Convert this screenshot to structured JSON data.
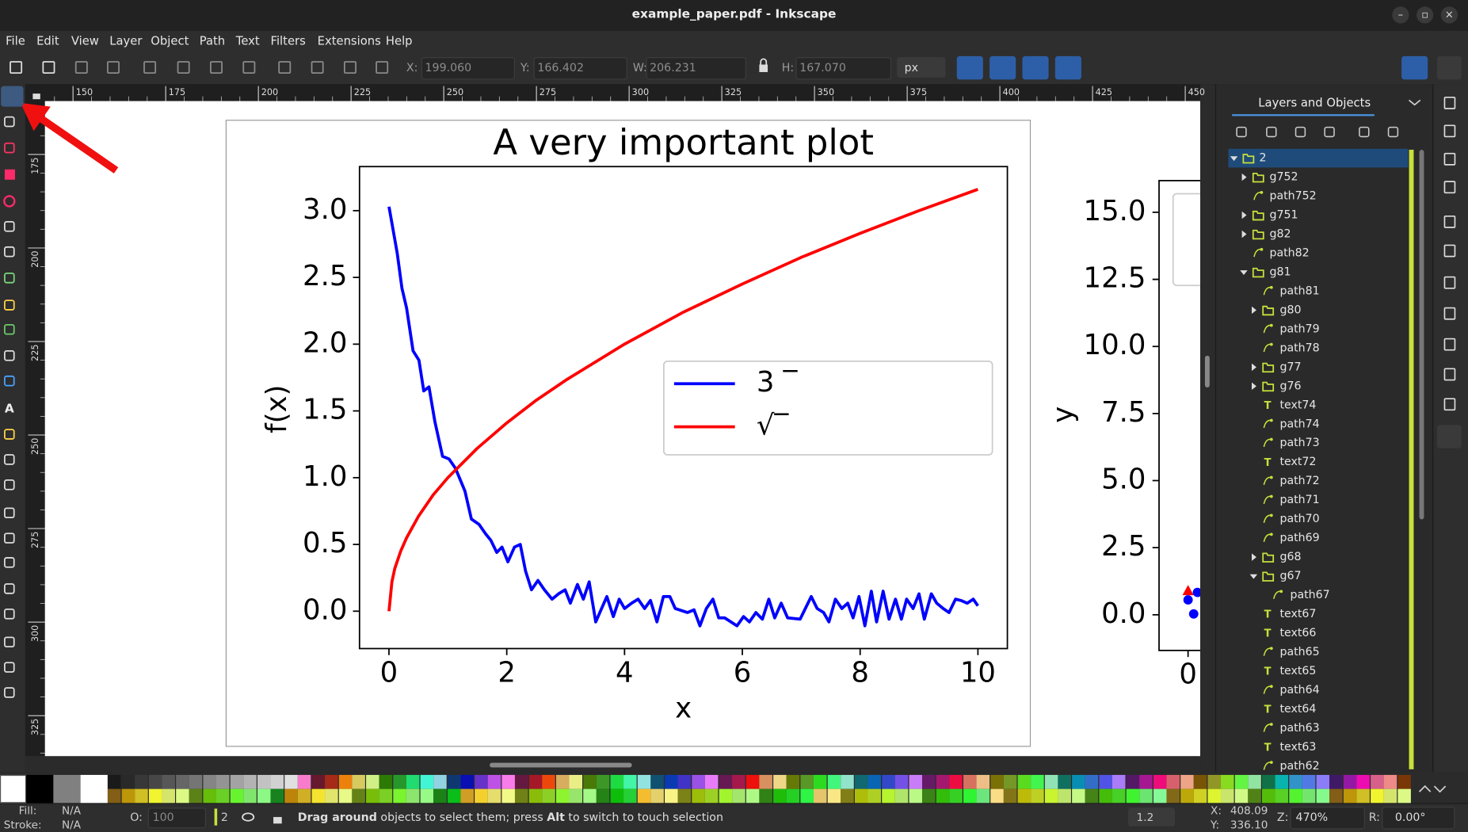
{
  "window": {
    "title": "example_paper.pdf - Inkscape"
  },
  "menu": [
    "File",
    "Edit",
    "View",
    "Layer",
    "Object",
    "Path",
    "Text",
    "Filters",
    "Extensions",
    "Help"
  ],
  "toolbar": {
    "x_label": "X:",
    "x": "199.060",
    "y_label": "Y:",
    "y": "166.402",
    "w_label": "W:",
    "w": "206.231",
    "h_label": "H:",
    "h": "167.070",
    "unit": "px"
  },
  "rulers": {
    "top": [
      150,
      175,
      200,
      225,
      250,
      275,
      300,
      325,
      350,
      375,
      400,
      425,
      450
    ],
    "left": [
      175,
      200,
      225,
      250,
      275,
      300,
      325
    ]
  },
  "canvas": {
    "plot": {
      "type": "line",
      "title": "A very important plot",
      "x_label": "x",
      "y_label": "f(x)",
      "xlim": [
        -0.5,
        10.5
      ],
      "ylim": [
        -0.28,
        3.33
      ],
      "xticks": [
        0,
        2,
        4,
        6,
        8,
        10
      ],
      "yticks": [
        {
          "value": 0,
          "label": "0.0"
        },
        {
          "value": 0.5,
          "label": "0.5"
        },
        {
          "value": 1,
          "label": "1.0"
        },
        {
          "value": 1.5,
          "label": "1.5"
        },
        {
          "value": 2,
          "label": "2.0"
        },
        {
          "value": 2.5,
          "label": "2.5"
        },
        {
          "value": 3,
          "label": "3.0"
        }
      ],
      "legend": "right",
      "series": [
        {
          "name": "3 ‾",
          "color": "#0000ff",
          "x": [
            0,
            0.14,
            0.22,
            0.3,
            0.41,
            0.51,
            0.59,
            0.68,
            0.78,
            0.91,
            1.02,
            1.13,
            1.29,
            1.4,
            1.53,
            1.64,
            1.73,
            1.83,
            1.92,
            2.02,
            2.13,
            2.23,
            2.32,
            2.42,
            2.53,
            2.64,
            2.77,
            2.88,
            2.99,
            3.08,
            3.2,
            3.3,
            3.4,
            3.51,
            3.7,
            3.81,
            3.91,
            4.0,
            4.12,
            4.23,
            4.34,
            4.44,
            4.55,
            4.66,
            4.77,
            4.86,
            5.07,
            5.18,
            5.28,
            5.39,
            5.5,
            5.6,
            5.7,
            5.91,
            6.02,
            6.12,
            6.23,
            6.34,
            6.45,
            6.55,
            6.66,
            6.77,
            6.98,
            7.17,
            7.27,
            7.38,
            7.47,
            7.58,
            7.69,
            7.79,
            7.88,
            7.98,
            8.08,
            8.19,
            8.28,
            8.39,
            8.49,
            8.6,
            8.7,
            8.79,
            8.9,
            9.0,
            9.09,
            9.21,
            9.3,
            9.41,
            9.51,
            9.62,
            9.71,
            9.82,
            9.92,
            10
          ],
          "values": [
            3.03,
            2.68,
            2.42,
            2.27,
            1.95,
            1.88,
            1.65,
            1.68,
            1.42,
            1.16,
            1.14,
            1.07,
            0.9,
            0.69,
            0.65,
            0.58,
            0.53,
            0.44,
            0.48,
            0.37,
            0.48,
            0.5,
            0.3,
            0.16,
            0.23,
            0.16,
            0.09,
            0.13,
            0.16,
            0.06,
            0.2,
            0.09,
            0.22,
            -0.08,
            0.11,
            -0.04,
            0.09,
            0.02,
            0.06,
            0.09,
            0.02,
            0.08,
            -0.08,
            0.11,
            0.11,
            0.02,
            -0.01,
            0.01,
            -0.11,
            0.02,
            0.09,
            -0.05,
            -0.05,
            -0.11,
            -0.04,
            -0.08,
            -0.01,
            -0.06,
            0.09,
            -0.05,
            0.06,
            -0.05,
            -0.06,
            0.11,
            0.02,
            -0.01,
            -0.08,
            0.09,
            0.02,
            0.06,
            -0.05,
            0.11,
            -0.11,
            0.15,
            -0.08,
            0.15,
            -0.06,
            0.09,
            -0.06,
            0.09,
            0.02,
            0.13,
            -0.06,
            0.13,
            0.06,
            0.02,
            -0.01,
            0.09,
            0.08,
            0.06,
            0.09,
            0.04
          ]
        },
        {
          "name": "√‾",
          "color": "#ff0000",
          "x": [
            0,
            0.05,
            0.1,
            0.2,
            0.3,
            0.5,
            0.75,
            1,
            1.5,
            2,
            2.5,
            3,
            4,
            5,
            6,
            7,
            8,
            9,
            10
          ],
          "values": [
            0,
            0.22,
            0.32,
            0.45,
            0.55,
            0.71,
            0.87,
            1,
            1.22,
            1.41,
            1.58,
            1.73,
            2,
            2.24,
            2.45,
            2.65,
            2.83,
            3,
            3.16
          ]
        }
      ]
    },
    "side_plot": {
      "type": "scatter",
      "y_label": "y",
      "ylim": [
        -1.33,
        16.18
      ],
      "xticks": [
        0
      ],
      "yticks": [
        {
          "value": 0,
          "label": "0.0"
        },
        {
          "value": 2.5,
          "label": "2.5"
        },
        {
          "value": 5,
          "label": "5.0"
        },
        {
          "value": 7.5,
          "label": "7.5"
        },
        {
          "value": 10,
          "label": "10.0"
        },
        {
          "value": 12.5,
          "label": "12.5"
        },
        {
          "value": 15,
          "label": "15.0"
        }
      ]
    }
  },
  "layers_panel": {
    "tab": "Layers and Objects",
    "items": [
      {
        "label": "2",
        "kind": "layer",
        "depth": 0,
        "expanded": true,
        "selected": true
      },
      {
        "label": "g752",
        "kind": "group",
        "depth": 1,
        "expanded": false
      },
      {
        "label": "path752",
        "kind": "path",
        "depth": 1
      },
      {
        "label": "g751",
        "kind": "group",
        "depth": 1,
        "expanded": false
      },
      {
        "label": "g82",
        "kind": "group",
        "depth": 1,
        "expanded": false
      },
      {
        "label": "path82",
        "kind": "path",
        "depth": 1
      },
      {
        "label": "g81",
        "kind": "group",
        "depth": 1,
        "expanded": true
      },
      {
        "label": "path81",
        "kind": "path",
        "depth": 2
      },
      {
        "label": "g80",
        "kind": "group",
        "depth": 2,
        "expanded": false
      },
      {
        "label": "path79",
        "kind": "path",
        "depth": 2
      },
      {
        "label": "path78",
        "kind": "path",
        "depth": 2
      },
      {
        "label": "g77",
        "kind": "group",
        "depth": 2,
        "expanded": false
      },
      {
        "label": "g76",
        "kind": "group",
        "depth": 2,
        "expanded": false
      },
      {
        "label": "text74",
        "kind": "text",
        "depth": 2
      },
      {
        "label": "path74",
        "kind": "path",
        "depth": 2
      },
      {
        "label": "path73",
        "kind": "path",
        "depth": 2
      },
      {
        "label": "text72",
        "kind": "text",
        "depth": 2
      },
      {
        "label": "path72",
        "kind": "path",
        "depth": 2
      },
      {
        "label": "path71",
        "kind": "path",
        "depth": 2
      },
      {
        "label": "path70",
        "kind": "path",
        "depth": 2
      },
      {
        "label": "path69",
        "kind": "path",
        "depth": 2
      },
      {
        "label": "g68",
        "kind": "group",
        "depth": 2,
        "expanded": false
      },
      {
        "label": "g67",
        "kind": "group",
        "depth": 2,
        "expanded": true
      },
      {
        "label": "path67",
        "kind": "path",
        "depth": 3
      },
      {
        "label": "text67",
        "kind": "text",
        "depth": 2
      },
      {
        "label": "text66",
        "kind": "text",
        "depth": 2
      },
      {
        "label": "path65",
        "kind": "path",
        "depth": 2
      },
      {
        "label": "text65",
        "kind": "text",
        "depth": 2
      },
      {
        "label": "path64",
        "kind": "path",
        "depth": 2
      },
      {
        "label": "text64",
        "kind": "text",
        "depth": 2
      },
      {
        "label": "path63",
        "kind": "path",
        "depth": 2
      },
      {
        "label": "text63",
        "kind": "text",
        "depth": 2
      },
      {
        "label": "path62",
        "kind": "path",
        "depth": 2
      }
    ]
  },
  "status": {
    "fill_label": "Fill:",
    "fill": "N/A",
    "stroke_label": "Stroke:",
    "stroke": "N/A",
    "opacity_label": "O:",
    "opacity": "100",
    "layer": "2",
    "message": [
      {
        "text": "Drag around",
        "bold": true
      },
      {
        "text": " objects to select them; press ",
        "bold": false
      },
      {
        "text": "Alt",
        "bold": true
      },
      {
        "text": " to switch to touch selection",
        "bold": false
      }
    ],
    "zoom_preset": "1.2",
    "cursor_x_label": "X:",
    "cursor_x": "408.09",
    "cursor_y_label": "Y:",
    "cursor_y": "336.10",
    "zoom_label": "Z:",
    "zoom": "470%",
    "rotation_label": "R:",
    "rotation": "0.00°"
  }
}
